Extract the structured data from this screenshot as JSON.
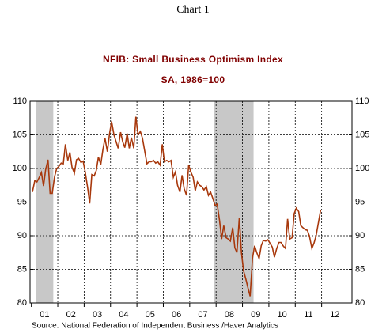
{
  "chart_data": {
    "type": "line",
    "title": "Chart 1",
    "subtitle": "NFIB: Small Business Optimism Index",
    "subtitle2": "SA, 1986=100",
    "source": "Source:  National Federation of Independent Business /Haver Analytics",
    "xlim": [
      2000.95,
      2013.15
    ],
    "ylim": [
      80,
      110
    ],
    "yticks": [
      80,
      85,
      90,
      95,
      100,
      105,
      110
    ],
    "xticks": [
      {
        "value": 2001,
        "label": "01"
      },
      {
        "value": 2002,
        "label": "02"
      },
      {
        "value": 2003,
        "label": "03"
      },
      {
        "value": 2004,
        "label": "04"
      },
      {
        "value": 2005,
        "label": "05"
      },
      {
        "value": 2006,
        "label": "06"
      },
      {
        "value": 2007,
        "label": "07"
      },
      {
        "value": 2008,
        "label": "08"
      },
      {
        "value": 2009,
        "label": "09"
      },
      {
        "value": 2010,
        "label": "10"
      },
      {
        "value": 2011,
        "label": "11"
      },
      {
        "value": 2012,
        "label": "12"
      }
    ],
    "grid": true,
    "shading": [
      [
        2001.17,
        2001.83
      ],
      [
        2007.92,
        2009.42
      ]
    ],
    "shading_color": "#c8c8c8",
    "x": [
      2001.04,
      2001.13,
      2001.21,
      2001.29,
      2001.38,
      2001.46,
      2001.54,
      2001.63,
      2001.71,
      2001.79,
      2001.88,
      2001.96,
      2002.04,
      2002.13,
      2002.21,
      2002.29,
      2002.38,
      2002.46,
      2002.54,
      2002.63,
      2002.71,
      2002.79,
      2002.88,
      2002.96,
      2003.04,
      2003.13,
      2003.21,
      2003.29,
      2003.38,
      2003.46,
      2003.54,
      2003.63,
      2003.71,
      2003.79,
      2003.88,
      2003.96,
      2004.04,
      2004.13,
      2004.21,
      2004.29,
      2004.38,
      2004.46,
      2004.54,
      2004.63,
      2004.71,
      2004.79,
      2004.88,
      2004.96,
      2005.04,
      2005.13,
      2005.21,
      2005.29,
      2005.38,
      2005.46,
      2005.54,
      2005.63,
      2005.71,
      2005.79,
      2005.88,
      2005.96,
      2006.04,
      2006.13,
      2006.21,
      2006.29,
      2006.38,
      2006.46,
      2006.54,
      2006.63,
      2006.71,
      2006.79,
      2006.88,
      2006.96,
      2007.04,
      2007.13,
      2007.21,
      2007.29,
      2007.38,
      2007.46,
      2007.54,
      2007.63,
      2007.71,
      2007.79,
      2007.88,
      2007.96,
      2008.04,
      2008.13,
      2008.21,
      2008.29,
      2008.38,
      2008.46,
      2008.54,
      2008.63,
      2008.71,
      2008.79,
      2008.88,
      2008.96,
      2009.04,
      2009.13,
      2009.21,
      2009.29,
      2009.38,
      2009.46,
      2009.54,
      2009.63,
      2009.71,
      2009.79,
      2009.88,
      2009.96,
      2010.04,
      2010.13,
      2010.21,
      2010.29,
      2010.38,
      2010.46,
      2010.54,
      2010.63,
      2010.71,
      2010.79,
      2010.88,
      2010.96,
      2011.04,
      2011.13,
      2011.21,
      2011.29,
      2011.38,
      2011.46,
      2011.54,
      2011.63,
      2011.71,
      2011.79,
      2011.88,
      2011.96
    ],
    "series": [
      {
        "name": "NFIB Small Business Optimism Index",
        "color": "#a8380c",
        "values": [
          96.5,
          98.2,
          98.0,
          98.6,
          99.4,
          97.4,
          99.8,
          101.3,
          96.3,
          96.3,
          98.8,
          100.0,
          100.3,
          100.8,
          100.7,
          103.6,
          101.2,
          102.4,
          100.2,
          99.3,
          101.3,
          101.5,
          100.9,
          101.1,
          99.5,
          97.2,
          94.8,
          99.1,
          98.9,
          99.7,
          101.7,
          100.6,
          102.8,
          104.5,
          102.5,
          105.1,
          107.0,
          105.0,
          104.0,
          103.0,
          105.4,
          104.0,
          103.1,
          105.2,
          103.0,
          104.6,
          103.0,
          107.7,
          105.0,
          105.5,
          104.5,
          102.7,
          100.7,
          101.0,
          101.0,
          101.2,
          100.8,
          101.0,
          100.5,
          103.6,
          101.0,
          101.2,
          101.0,
          101.2,
          98.7,
          99.5,
          97.5,
          96.5,
          99.0,
          97.0,
          96.0,
          100.5,
          99.5,
          98.7,
          96.7,
          98.0,
          97.5,
          97.3,
          96.8,
          97.3,
          96.0,
          96.5,
          95.5,
          94.5,
          94.7,
          92.3,
          89.5,
          91.5,
          89.7,
          89.5,
          89.2,
          91.2,
          88.2,
          87.5,
          92.7,
          87.5,
          84.8,
          83.5,
          82.2,
          81.0,
          86.7,
          88.5,
          87.5,
          86.6,
          88.5,
          89.3,
          89.2,
          89.4,
          88.9,
          88.3,
          86.8,
          88.0,
          89.0,
          89.0,
          88.5,
          88.1,
          92.5,
          89.5,
          89.7,
          93.3,
          94.1,
          93.6,
          91.5,
          91.2,
          90.9,
          90.8,
          89.9,
          88.1,
          88.9,
          90.0,
          92.0,
          93.8
        ]
      }
    ]
  }
}
